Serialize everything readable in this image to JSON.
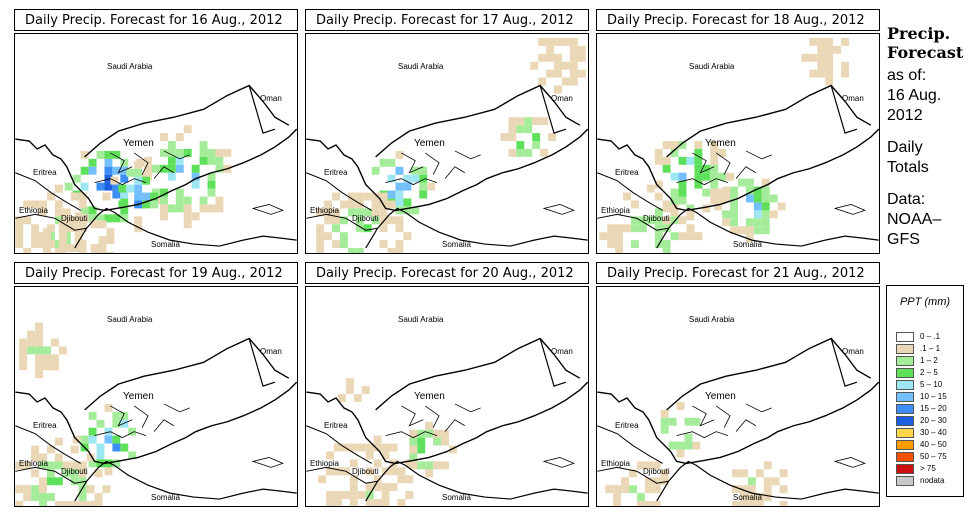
{
  "panels": [
    {
      "title": "Daily Precip. Forecast for  16 Aug., 2012"
    },
    {
      "title": "Daily Precip. Forecast for  17 Aug., 2012"
    },
    {
      "title": "Daily Precip. Forecast for  18 Aug., 2012"
    },
    {
      "title": "Daily Precip. Forecast for  19 Aug., 2012"
    },
    {
      "title": "Daily Precip. Forecast for  20 Aug., 2012"
    },
    {
      "title": "Daily Precip. Forecast for  21 Aug., 2012"
    }
  ],
  "map_labels": {
    "saudi": "Saudi Arabia",
    "oman": "Oman",
    "yemen": "Yemen",
    "eritrea": "Eritrea",
    "ethiopia": "Ethiopia",
    "djibouti": "Djibouti",
    "somalia": "Somalia"
  },
  "sidebar": {
    "heading1": "Precip.",
    "heading2": "Forecast",
    "asof": "as of:",
    "date1": "16 Aug.",
    "date2": "2012",
    "daily1": "Daily",
    "daily2": "Totals",
    "data1": "Data:",
    "data2": "NOAA–",
    "data3": "GFS"
  },
  "legend": {
    "title": "PPT (mm)",
    "items": [
      {
        "label": "0 – .1",
        "color": "#ffffff"
      },
      {
        "label": ".1 – 1",
        "color": "#ead7b5"
      },
      {
        "label": "1 – 2",
        "color": "#a5ec9a"
      },
      {
        "label": "2 – 5",
        "color": "#5ee05a"
      },
      {
        "label": "5 – 10",
        "color": "#9ee7f2"
      },
      {
        "label": "10 – 15",
        "color": "#74bfff"
      },
      {
        "label": "15 – 20",
        "color": "#3c8df5"
      },
      {
        "label": "20 – 30",
        "color": "#1d5fe0"
      },
      {
        "label": "30 – 40",
        "color": "#ffd54a"
      },
      {
        "label": "40 – 50",
        "color": "#ff9d00"
      },
      {
        "label": "50 – 75",
        "color": "#f25000"
      },
      {
        "label": "> 75",
        "color": "#cc1010"
      },
      {
        "label": "nodata",
        "color": "#c8c8c8"
      }
    ]
  }
}
